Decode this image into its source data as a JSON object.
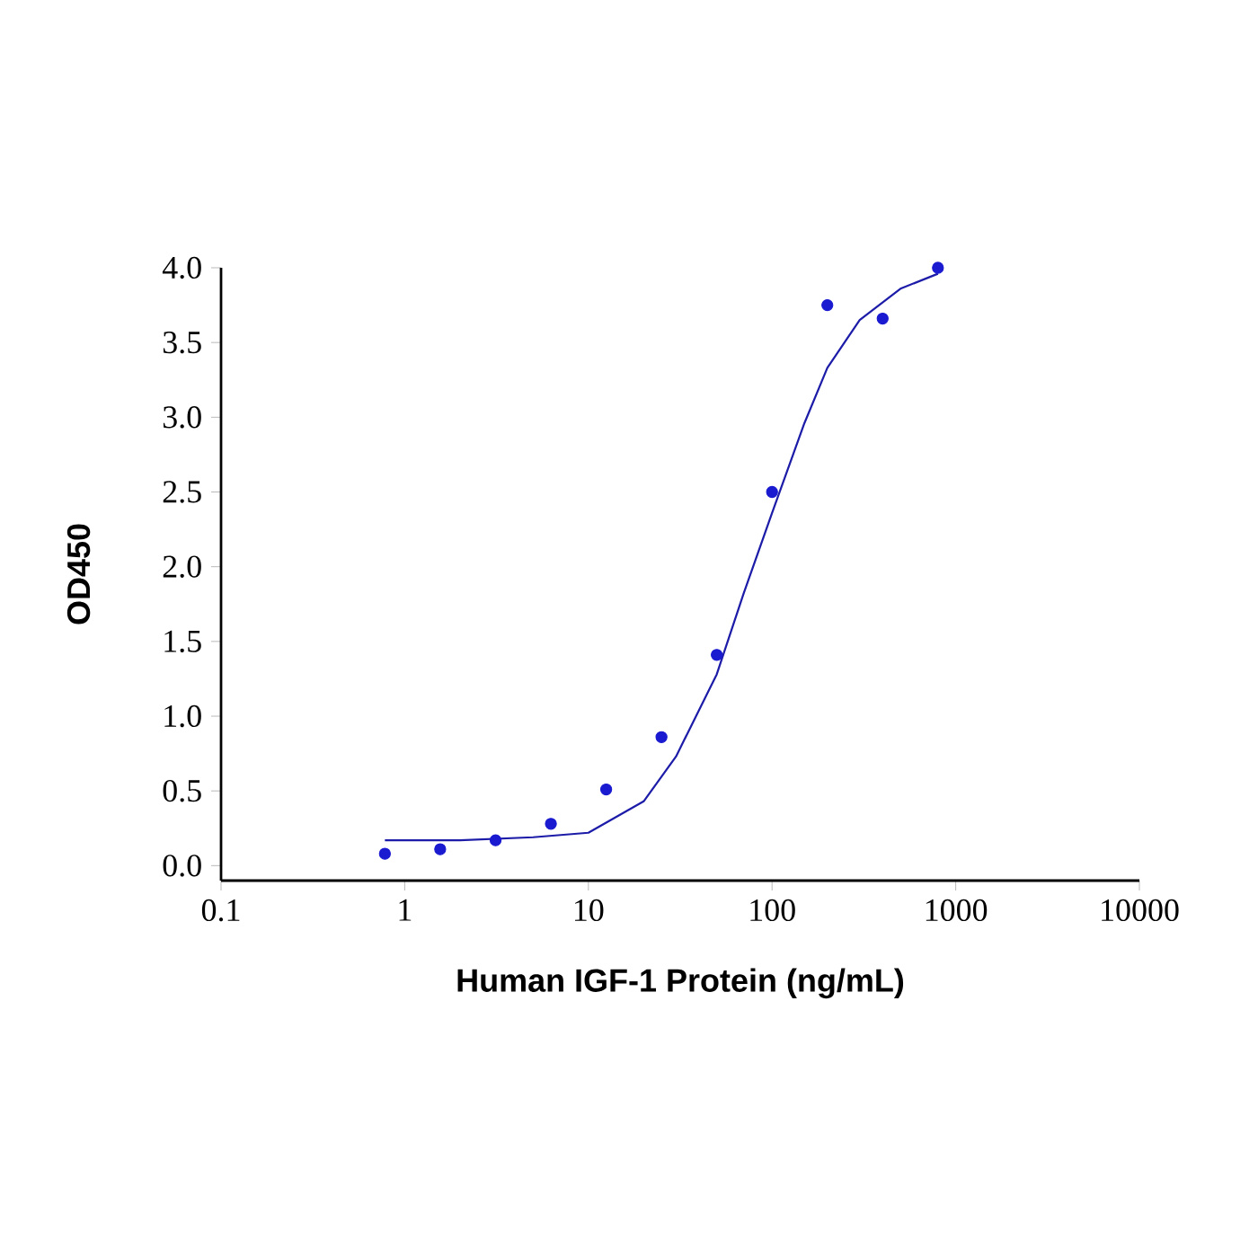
{
  "chart_data": {
    "type": "scatter",
    "xlabel": "Human IGF-1 Protein (ng/mL)",
    "ylabel": "OD450",
    "log": "x",
    "xlim": [
      0.1,
      10000
    ],
    "xticks": [
      0.1,
      1,
      10,
      100,
      1000,
      10000
    ],
    "ylim": [
      -0.1,
      4.0
    ],
    "yticks": [
      {
        "value": 0,
        "label": "0.0"
      },
      {
        "value": 0.5,
        "label": "0.5"
      },
      {
        "value": 1,
        "label": "1.0"
      },
      {
        "value": 1.5,
        "label": "1.5"
      },
      {
        "value": 2,
        "label": "2.0"
      },
      {
        "value": 2.5,
        "label": "2.5"
      },
      {
        "value": 3,
        "label": "3.0"
      },
      {
        "value": 3.5,
        "label": "3.5"
      },
      {
        "value": 4,
        "label": "4.0"
      }
    ],
    "grid": false,
    "series": [
      {
        "marker": "circle",
        "color": "#1a1ad0",
        "x": [
          0.78,
          1.56,
          3.125,
          6.25,
          12.5,
          25,
          50,
          100,
          200,
          400,
          800
        ],
        "values": [
          0.08,
          0.11,
          0.17,
          0.28,
          0.51,
          0.86,
          1.41,
          2.5,
          3.75,
          3.66,
          4.0
        ]
      },
      {
        "type": "line",
        "marker": "none",
        "color": "#1c1ca8",
        "x": [
          0.78,
          2,
          5,
          10,
          20,
          30,
          50,
          70,
          100,
          150,
          200,
          300,
          500,
          800
        ],
        "values": [
          0.17,
          0.17,
          0.19,
          0.22,
          0.43,
          0.73,
          1.28,
          1.82,
          2.36,
          2.96,
          3.33,
          3.65,
          3.86,
          3.96
        ]
      }
    ]
  }
}
